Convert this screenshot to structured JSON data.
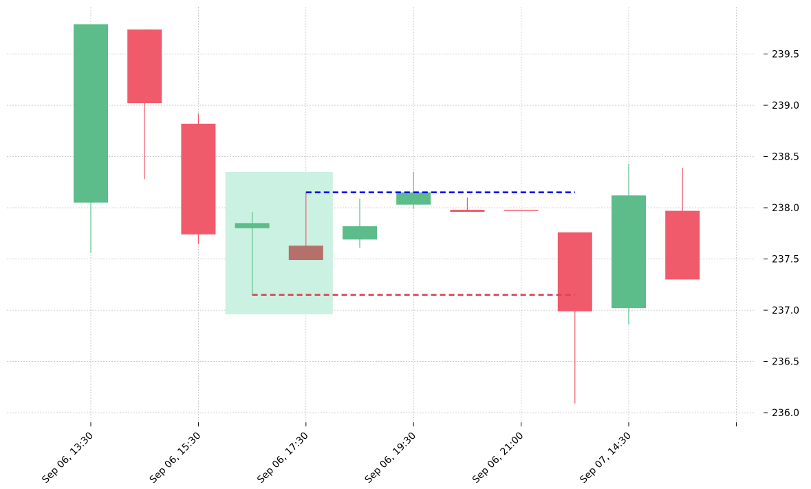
{
  "chart_data": {
    "type": "candlestick",
    "x_tick_labels": [
      "Sep 06, 13:30",
      "Sep 06, 15:30",
      "Sep 06, 17:30",
      "Sep 06, 19:30",
      "Sep 06, 21:00",
      "Sep 07, 14:30",
      ""
    ],
    "y_ticks": [
      236.0,
      236.5,
      237.0,
      237.5,
      238.0,
      238.5,
      239.0,
      239.5
    ],
    "y_tick_labels": [
      "236.0",
      "236.5",
      "237.0",
      "237.5",
      "238.0",
      "238.5",
      "239.0",
      "239.5"
    ],
    "ylim": [
      235.92,
      239.96
    ],
    "candles": [
      {
        "open": 238.05,
        "high": 239.79,
        "low": 237.56,
        "close": 239.79
      },
      {
        "open": 239.74,
        "high": 239.74,
        "low": 238.28,
        "close": 239.02
      },
      {
        "open": 238.82,
        "high": 238.92,
        "low": 237.65,
        "close": 237.74
      },
      {
        "open": 237.8,
        "high": 237.96,
        "low": 237.15,
        "close": 237.85
      },
      {
        "open": 237.63,
        "high": 238.15,
        "low": 237.49,
        "close": 237.49
      },
      {
        "open": 237.69,
        "high": 238.09,
        "low": 237.61,
        "close": 237.82
      },
      {
        "open": 238.03,
        "high": 238.35,
        "low": 237.99,
        "close": 238.15
      },
      {
        "open": 237.98,
        "high": 238.1,
        "low": 237.96,
        "close": 237.96
      },
      {
        "open": 237.98,
        "high": 237.98,
        "low": 237.97,
        "close": 237.97
      },
      {
        "open": 237.76,
        "high": 237.76,
        "low": 236.09,
        "close": 236.99
      },
      {
        "open": 237.02,
        "high": 238.43,
        "low": 236.86,
        "close": 238.12
      },
      {
        "open": 237.97,
        "high": 238.39,
        "low": 237.3,
        "close": 237.3
      }
    ],
    "highlight": {
      "from_index": 3,
      "to_index": 4,
      "low": 236.96,
      "high": 238.35
    },
    "levels": [
      {
        "value": 238.15,
        "from_index": 4,
        "to_index": 9,
        "color": "#0000ee"
      },
      {
        "value": 237.15,
        "from_index": 3,
        "to_index": 9,
        "color": "#e04050"
      }
    ],
    "grid": true,
    "colors": {
      "up": "#5cbd8a",
      "down": "#ef5b6a",
      "highlight_fill": "#c8f0e0",
      "highlight_down": "#b5706b",
      "grid": "#b0b0b0"
    }
  }
}
